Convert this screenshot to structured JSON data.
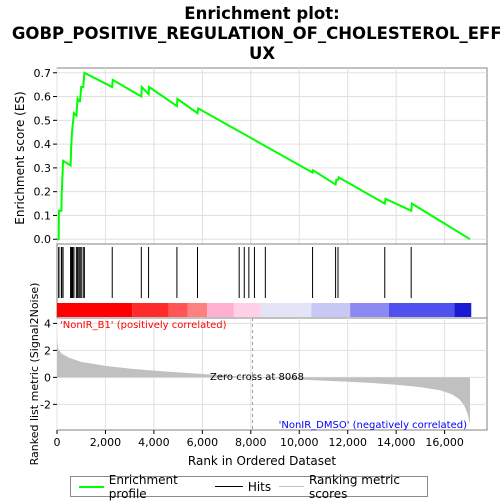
{
  "title_line1": "Enrichment plot:",
  "title_line2": "GOBP_POSITIVE_REGULATION_OF_CHOLESTEROL_EFFL",
  "title_line3": "UX",
  "colors": {
    "profile": "#00ff00",
    "hits": "#000000",
    "metric": "#c0c0c0",
    "positive_label": "#ff0000",
    "negative_label": "#0000ff"
  },
  "chart_data": {
    "type": "line",
    "es_panel": {
      "ylabel": "Enrichment score (ES)",
      "ylim": [
        -0.02,
        0.72
      ],
      "yticks": [
        0.0,
        0.1,
        0.2,
        0.3,
        0.4,
        0.5,
        0.6,
        0.7
      ],
      "ytick_labels": [
        "0.0",
        "0.1",
        "0.2",
        "0.3",
        "0.4",
        "0.5",
        "0.6",
        "0.7"
      ],
      "grid": true,
      "profile": {
        "name": "Enrichment profile",
        "x": [
          0,
          70,
          80,
          180,
          195,
          250,
          560,
          580,
          620,
          650,
          700,
          800,
          850,
          900,
          950,
          1000,
          1080,
          1130,
          2280,
          2300,
          3480,
          3500,
          3780,
          3800,
          4950,
          4970,
          5800,
          5830,
          10550,
          10570,
          11500,
          11530,
          11600,
          11630,
          13530,
          13560,
          14620,
          14650,
          17050
        ],
        "y": [
          0.0,
          0.0,
          0.12,
          0.12,
          0.19,
          0.33,
          0.31,
          0.38,
          0.45,
          0.48,
          0.53,
          0.52,
          0.59,
          0.58,
          0.58,
          0.64,
          0.64,
          0.7,
          0.64,
          0.67,
          0.6,
          0.64,
          0.61,
          0.64,
          0.56,
          0.59,
          0.53,
          0.55,
          0.28,
          0.29,
          0.23,
          0.25,
          0.25,
          0.26,
          0.15,
          0.17,
          0.12,
          0.15,
          0.0
        ]
      }
    },
    "hits_panel": {
      "name": "Hits",
      "positions": [
        70,
        80,
        180,
        195,
        250,
        560,
        580,
        620,
        650,
        700,
        800,
        850,
        900,
        950,
        1000,
        1080,
        1130,
        2280,
        3480,
        3780,
        4950,
        5800,
        7520,
        7730,
        7920,
        8150,
        8600,
        10550,
        11500,
        11600,
        13530,
        14620
      ]
    },
    "metric_panel": {
      "name": "Ranking metric scores",
      "ylabel": "Ranked list metric (Signal2Noise)",
      "ylim": [
        -3.9,
        4.4
      ],
      "yticks": [
        -2,
        0,
        2,
        4
      ],
      "ytick_labels": [
        "-2",
        "0",
        "2",
        "4"
      ],
      "x": [
        0,
        50,
        200,
        500,
        1000,
        2000,
        3000,
        4000,
        5000,
        6000,
        7000,
        8068,
        9000,
        10000,
        11000,
        12000,
        13000,
        14000,
        15000,
        15800,
        16300,
        16600,
        16800,
        16950,
        17050
      ],
      "y": [
        2.9,
        2.1,
        1.75,
        1.45,
        1.15,
        0.85,
        0.65,
        0.5,
        0.37,
        0.25,
        0.13,
        0.0,
        -0.08,
        -0.16,
        -0.24,
        -0.32,
        -0.42,
        -0.54,
        -0.72,
        -0.95,
        -1.25,
        -1.6,
        -2.05,
        -2.7,
        -3.5
      ],
      "positive_label": "'NonIR_B1' (positively correlated)",
      "negative_label": "'NonIR_DMSO' (negatively correlated)",
      "zero_cross_label": "Zero cross at 8068",
      "zero_cross": 8068
    },
    "xlabel": "Rank in Ordered Dataset",
    "xlim": [
      0,
      17750
    ],
    "xticks": [
      0,
      2000,
      4000,
      6000,
      8000,
      10000,
      12000,
      14000,
      16000
    ],
    "xtick_labels": [
      "0",
      "2,000",
      "4,000",
      "6,000",
      "8,000",
      "10,000",
      "12,000",
      "14,000",
      "16,000"
    ],
    "color_bar": {
      "segments": [
        {
          "from": 0,
          "to": 3100,
          "color": "#ff0000"
        },
        {
          "from": 3100,
          "to": 4600,
          "color": "#ff2a2a"
        },
        {
          "from": 4600,
          "to": 5400,
          "color": "#ff5555"
        },
        {
          "from": 5400,
          "to": 6200,
          "color": "#ff8080"
        },
        {
          "from": 6200,
          "to": 7300,
          "color": "#ffb0d0"
        },
        {
          "from": 7300,
          "to": 8400,
          "color": "#ffd0e8"
        },
        {
          "from": 8400,
          "to": 10500,
          "color": "#e4e4f8"
        },
        {
          "from": 10500,
          "to": 12100,
          "color": "#c8c8f4"
        },
        {
          "from": 12100,
          "to": 13700,
          "color": "#8a8af0"
        },
        {
          "from": 13700,
          "to": 16400,
          "color": "#5050ee"
        },
        {
          "from": 16400,
          "to": 17100,
          "color": "#1a1ad4"
        }
      ]
    },
    "legend": {
      "entries": [
        "Enrichment profile",
        "Hits",
        "Ranking metric scores"
      ],
      "placement": "bottom"
    }
  }
}
